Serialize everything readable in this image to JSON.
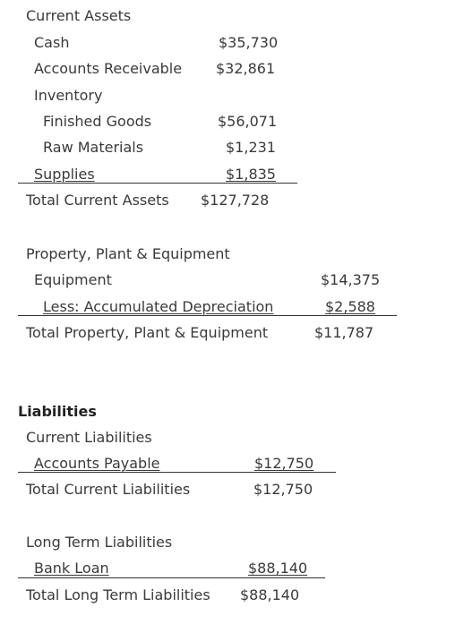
{
  "current_assets": {
    "heading": "Current Assets",
    "cash_label": "Cash",
    "cash_value": "$35,730",
    "ar_label": "Accounts Receivable",
    "ar_value": "$32,861",
    "inventory_label": "Inventory",
    "finished_goods_label": "Finished Goods",
    "finished_goods_value": "$56,071",
    "raw_materials_label": "Raw Materials",
    "raw_materials_value": "$1,231",
    "supplies_label": "Supplies",
    "supplies_value": "$1,835",
    "total_label": "Total Current Assets",
    "total_value": "$127,728"
  },
  "ppe": {
    "heading": "Property, Plant & Equipment",
    "equipment_label": "Equipment",
    "equipment_value": "$14,375",
    "depreciation_label": "Less:  Accumulated Depreciation",
    "depreciation_value": "$2,588",
    "total_label": "Total Property, Plant & Equipment",
    "total_value": "$11,787"
  },
  "liabilities": {
    "heading": "Liabilities",
    "current_heading": "Current Liabilities",
    "accounts_payable_label": "Accounts Payable",
    "accounts_payable_value": "$12,750",
    "current_total_label": "Total Current Liabilities",
    "current_total_value": "$12,750",
    "long_term_heading": "Long Term Liabilities",
    "bank_loan_label": "Bank Loan",
    "bank_loan_value": "$88,140",
    "long_term_total_label": "Total Long Term Liabilities",
    "long_term_total_value": "$88,140"
  }
}
